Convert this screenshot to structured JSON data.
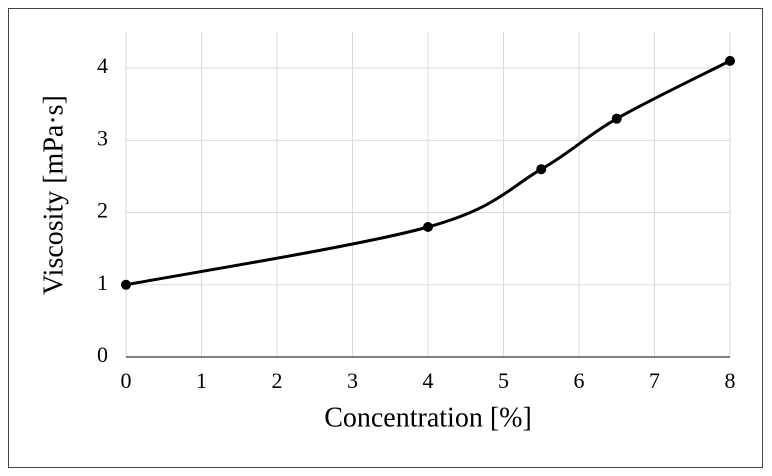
{
  "chart_data": {
    "type": "line",
    "x_label": "Concentration [%]",
    "y_label": "Viscosity [mPa·s]",
    "x": [
      0,
      4,
      5.5,
      6.5,
      8
    ],
    "series": [
      {
        "color": "#000000",
        "values": [
          1,
          1.8,
          2.6,
          3.3,
          4.1
        ]
      }
    ],
    "xlim": [
      0,
      8
    ],
    "xticks": [
      0,
      1,
      2,
      3,
      4,
      5,
      6,
      7,
      8
    ],
    "ylim": [
      0,
      4.5
    ],
    "yticks": [
      0,
      1,
      2,
      3,
      4
    ],
    "grid": true,
    "smooth": true
  }
}
